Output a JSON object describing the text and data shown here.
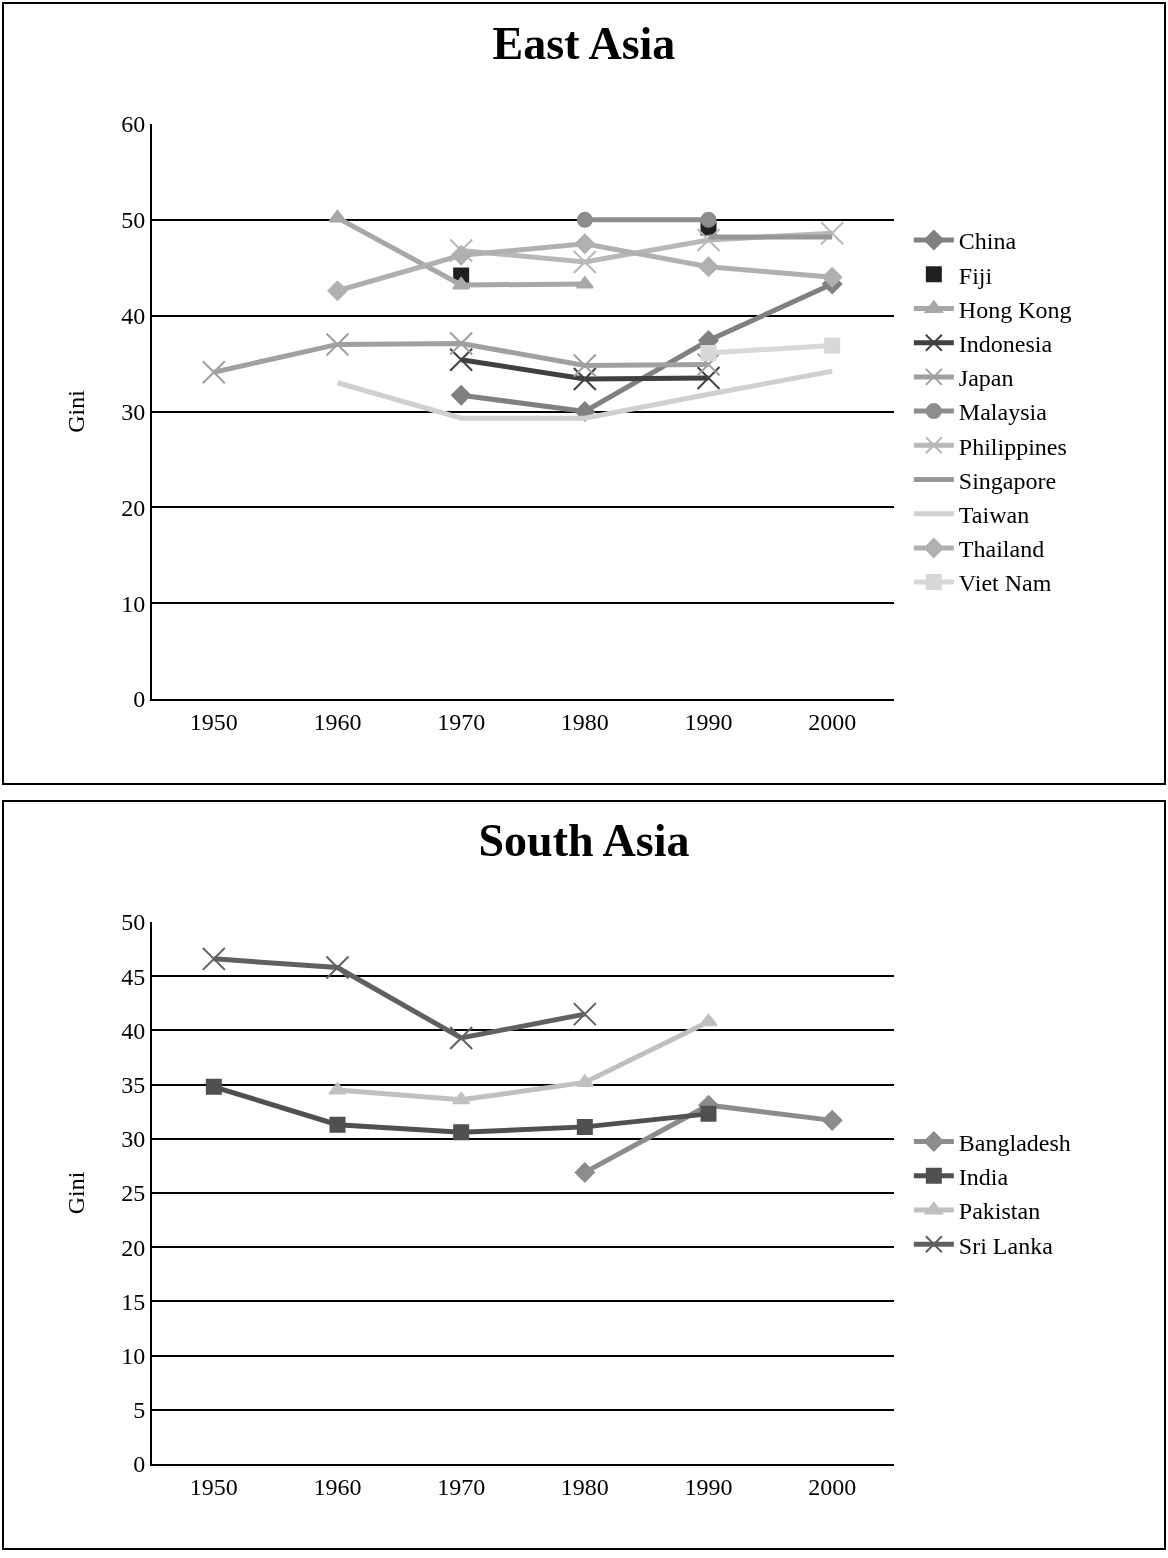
{
  "chart_data": [
    {
      "type": "line",
      "title": "East Asia",
      "ylabel": "Gini",
      "categories": [
        "1950",
        "1960",
        "1970",
        "1980",
        "1990",
        "2000"
      ],
      "ylim": [
        0,
        60
      ],
      "yticks": [
        0,
        10,
        20,
        30,
        40,
        50,
        60
      ],
      "grid": "y",
      "legend": "right",
      "series": [
        {
          "name": "China",
          "color": "#808080",
          "marker": "diamond",
          "values": [
            null,
            null,
            31.7,
            30.0,
            37.4,
            43.3
          ]
        },
        {
          "name": "Fiji",
          "type": "scatter",
          "color": "#202020",
          "marker": "square",
          "values": [
            null,
            null,
            44.2,
            null,
            49.2,
            null
          ]
        },
        {
          "name": "Hong Kong",
          "color": "#a8a8a8",
          "marker": "triangle",
          "values": [
            null,
            50.2,
            43.2,
            43.3,
            null,
            null
          ]
        },
        {
          "name": "Indonesia",
          "color": "#404040",
          "marker": "cross",
          "values": [
            null,
            null,
            35.4,
            33.4,
            33.5,
            null
          ]
        },
        {
          "name": "Japan",
          "color": "#a0a0a0",
          "marker": "cross",
          "values": [
            34.1,
            37.0,
            37.1,
            34.8,
            34.9,
            null
          ]
        },
        {
          "name": "Malaysia",
          "color": "#8c8c8c",
          "marker": "circle",
          "values": [
            null,
            null,
            null,
            50.0,
            50.0,
            null
          ]
        },
        {
          "name": "Philippines",
          "color": "#b8b8b8",
          "marker": "cross",
          "values": [
            null,
            null,
            46.8,
            45.6,
            47.9,
            48.6
          ]
        },
        {
          "name": "Singapore",
          "color": "#989898",
          "marker": "none",
          "values": [
            null,
            null,
            null,
            null,
            48.2,
            48.2
          ]
        },
        {
          "name": "Taiwan",
          "color": "#d0d0d0",
          "marker": "none",
          "values": [
            null,
            33.0,
            29.3,
            29.3,
            31.8,
            34.2
          ]
        },
        {
          "name": "Thailand",
          "color": "#b0b0b0",
          "marker": "diamond",
          "values": [
            null,
            42.6,
            46.3,
            47.5,
            45.1,
            44.0
          ]
        },
        {
          "name": "Viet Nam",
          "color": "#d8d8d8",
          "marker": "square",
          "values": [
            null,
            null,
            null,
            null,
            36.1,
            36.9
          ]
        }
      ]
    },
    {
      "type": "line",
      "title": "South Asia",
      "ylabel": "Gini",
      "categories": [
        "1950",
        "1960",
        "1970",
        "1980",
        "1990",
        "2000"
      ],
      "ylim": [
        0,
        50
      ],
      "yticks": [
        0,
        5,
        10,
        15,
        20,
        25,
        30,
        35,
        40,
        45,
        50
      ],
      "grid": "y",
      "legend": "right",
      "series": [
        {
          "name": "Bangladesh",
          "color": "#8c8c8c",
          "marker": "diamond",
          "values": [
            null,
            null,
            null,
            26.9,
            33.1,
            31.7
          ]
        },
        {
          "name": "India",
          "color": "#505050",
          "marker": "square",
          "values": [
            34.8,
            31.3,
            30.6,
            31.1,
            32.3,
            null
          ]
        },
        {
          "name": "Pakistan",
          "color": "#c0c0c0",
          "marker": "triangle",
          "values": [
            null,
            34.5,
            33.6,
            35.2,
            40.8,
            null
          ]
        },
        {
          "name": "Sri Lanka",
          "color": "#606060",
          "marker": "cross",
          "values": [
            46.6,
            45.8,
            39.3,
            41.5,
            null,
            null
          ]
        }
      ]
    }
  ]
}
